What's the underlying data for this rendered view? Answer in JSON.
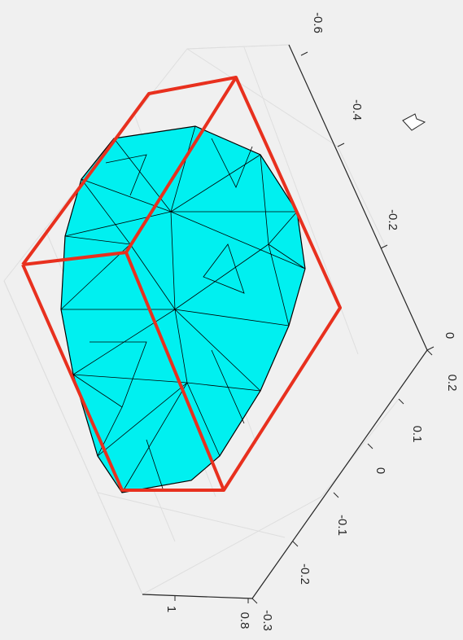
{
  "axes": {
    "right_ticks": [
      "-0.6",
      "-0.4",
      "-0.2",
      "0"
    ],
    "bottom_ticks": [
      "0.2",
      "0.1",
      "0",
      "-0.1",
      "-0.2",
      "-0.3"
    ],
    "left_ticks": [
      "1",
      "0.8"
    ]
  }
}
